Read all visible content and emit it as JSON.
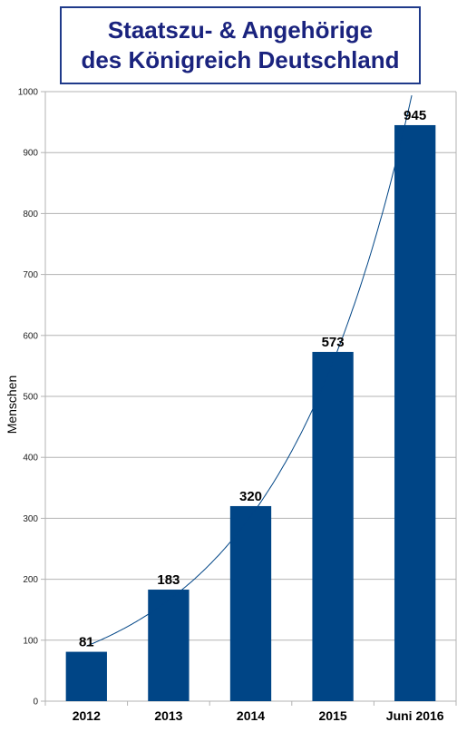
{
  "title_lines": [
    "Staatszu- & Angehörige",
    "des Königreich Deutschland"
  ],
  "chart_data": {
    "type": "bar",
    "title": "Staatszu- & Angehörige des Königreich Deutschland",
    "categories": [
      "2012",
      "2013",
      "2014",
      "2015",
      "Juni 2016"
    ],
    "values": [
      81,
      183,
      320,
      573,
      945
    ],
    "ylabel": "Menschen",
    "xlabel": "",
    "ylim": [
      0,
      1000
    ],
    "yticks": [
      0,
      100,
      200,
      300,
      400,
      500,
      600,
      700,
      800,
      900,
      1000
    ],
    "grid": true,
    "trendline": "exponential",
    "colors": {
      "bar": "#004586",
      "trend": "#004586",
      "grid": "#b3b3b3"
    }
  }
}
